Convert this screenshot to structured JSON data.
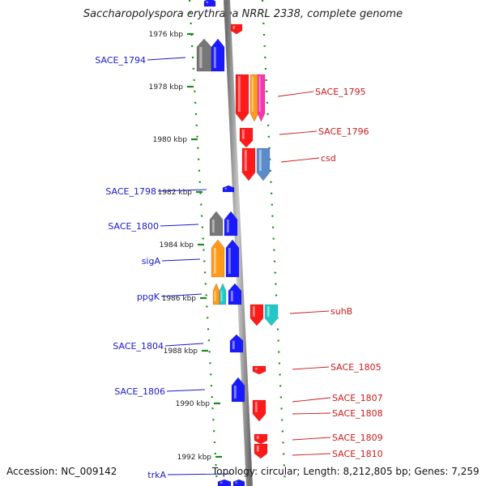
{
  "title": "Saccharopolyspora erythraea NRRL 2338, complete genome",
  "accession": "Accession: NC_009142",
  "topology": "Topology: circular; Length: 8,212,805 bp; Genes: 7,259",
  "colors": {
    "blue": "#1a1aff",
    "red": "#ff1a1a",
    "orange": "#ff9a1a",
    "magenta": "#ff33aa",
    "steel": "#5b8cc9",
    "cyan": "#22c8c8",
    "gray": "#777777",
    "tick": "#1a8a1a",
    "axis": "#888888",
    "label_blue": "#1a1acc",
    "label_red": "#cc1a1a"
  },
  "kbp_ticks": [
    "1976 kbp",
    "1978 kbp",
    "1980 kbp",
    "1982 kbp",
    "1984 kbp",
    "1986 kbp",
    "1988 kbp",
    "1990 kbp",
    "1992 kbp"
  ],
  "left_genes": [
    "SACE_1794",
    "SACE_1798",
    "SACE_1800",
    "sigA",
    "ppgK",
    "SACE_1804",
    "SACE_1806",
    "trkA"
  ],
  "right_genes": [
    "SACE_1795",
    "SACE_1796",
    "csd",
    "suhB",
    "SACE_1805",
    "SACE_1807",
    "SACE_1808",
    "SACE_1809",
    "SACE_1810"
  ]
}
